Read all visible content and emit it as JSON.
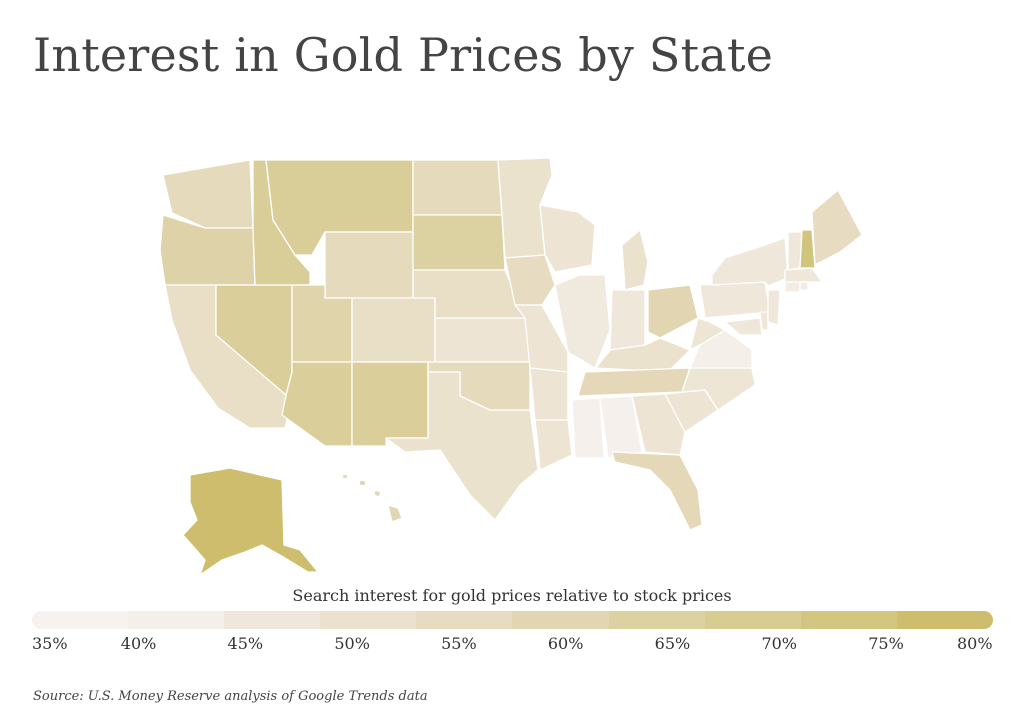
{
  "title": "Interest in Gold Prices by State",
  "legend": {
    "title": "Search interest for gold prices relative to stock prices",
    "ticks": [
      "35%",
      "40%",
      "45%",
      "50%",
      "55%",
      "60%",
      "65%",
      "70%",
      "75%",
      "80%"
    ],
    "colors": [
      "#f7f1f0",
      "#f4efe8",
      "#efe8da",
      "#ebe2ce",
      "#e7dcc1",
      "#e2d6b2",
      "#dcd1a1",
      "#d7cc91",
      "#d2c681",
      "#cdbd6d"
    ]
  },
  "source": "Source: U.S. Money Reserve analysis of Google Trends data",
  "scale": {
    "min": 35,
    "max": 80,
    "stroke_color": "#ffffff"
  },
  "chart_data": {
    "type": "choropleth",
    "unit": "%",
    "regions": [
      {
        "state": "Alaska",
        "value": 80
      },
      {
        "state": "New Hampshire",
        "value": 76
      },
      {
        "state": "Montana",
        "value": 68
      },
      {
        "state": "Idaho",
        "value": 68
      },
      {
        "state": "Nevada",
        "value": 67
      },
      {
        "state": "Arizona",
        "value": 67
      },
      {
        "state": "New Mexico",
        "value": 67
      },
      {
        "state": "South Dakota",
        "value": 65
      },
      {
        "state": "Oregon",
        "value": 63
      },
      {
        "state": "Utah",
        "value": 62
      },
      {
        "state": "Wyoming",
        "value": 57
      },
      {
        "state": "Washington",
        "value": 57
      },
      {
        "state": "North Dakota",
        "value": 57
      },
      {
        "state": "Ohio",
        "value": 60
      },
      {
        "state": "Florida",
        "value": 58
      },
      {
        "state": "Tennessee",
        "value": 58
      },
      {
        "state": "Oklahoma",
        "value": 57
      },
      {
        "state": "Maine",
        "value": 55
      },
      {
        "state": "Colorado",
        "value": 53
      },
      {
        "state": "California",
        "value": 53
      },
      {
        "state": "Nebraska",
        "value": 53
      },
      {
        "state": "Iowa",
        "value": 55
      },
      {
        "state": "Hawaii",
        "value": 60
      },
      {
        "state": "Texas",
        "value": 50
      },
      {
        "state": "Kansas",
        "value": 48
      },
      {
        "state": "Minnesota",
        "value": 50
      },
      {
        "state": "Missouri",
        "value": 48
      },
      {
        "state": "Arkansas",
        "value": 48
      },
      {
        "state": "Louisiana",
        "value": 48
      },
      {
        "state": "Wisconsin",
        "value": 48
      },
      {
        "state": "Michigan",
        "value": 50
      },
      {
        "state": "Kentucky",
        "value": 50
      },
      {
        "state": "Georgia",
        "value": 48
      },
      {
        "state": "South Carolina",
        "value": 48
      },
      {
        "state": "North Carolina",
        "value": 47
      },
      {
        "state": "West Virginia",
        "value": 47
      },
      {
        "state": "Indiana",
        "value": 45
      },
      {
        "state": "Illinois",
        "value": 44
      },
      {
        "state": "Pennsylvania",
        "value": 45
      },
      {
        "state": "New York",
        "value": 45
      },
      {
        "state": "Vermont",
        "value": 45
      },
      {
        "state": "Massachusetts",
        "value": 45
      },
      {
        "state": "Connecticut",
        "value": 42
      },
      {
        "state": "Rhode Island",
        "value": 42
      },
      {
        "state": "New Jersey",
        "value": 45
      },
      {
        "state": "Delaware",
        "value": 45
      },
      {
        "state": "Maryland",
        "value": 45
      },
      {
        "state": "Virginia",
        "value": 40
      },
      {
        "state": "Mississippi",
        "value": 38
      },
      {
        "state": "Alabama",
        "value": 37
      }
    ]
  }
}
